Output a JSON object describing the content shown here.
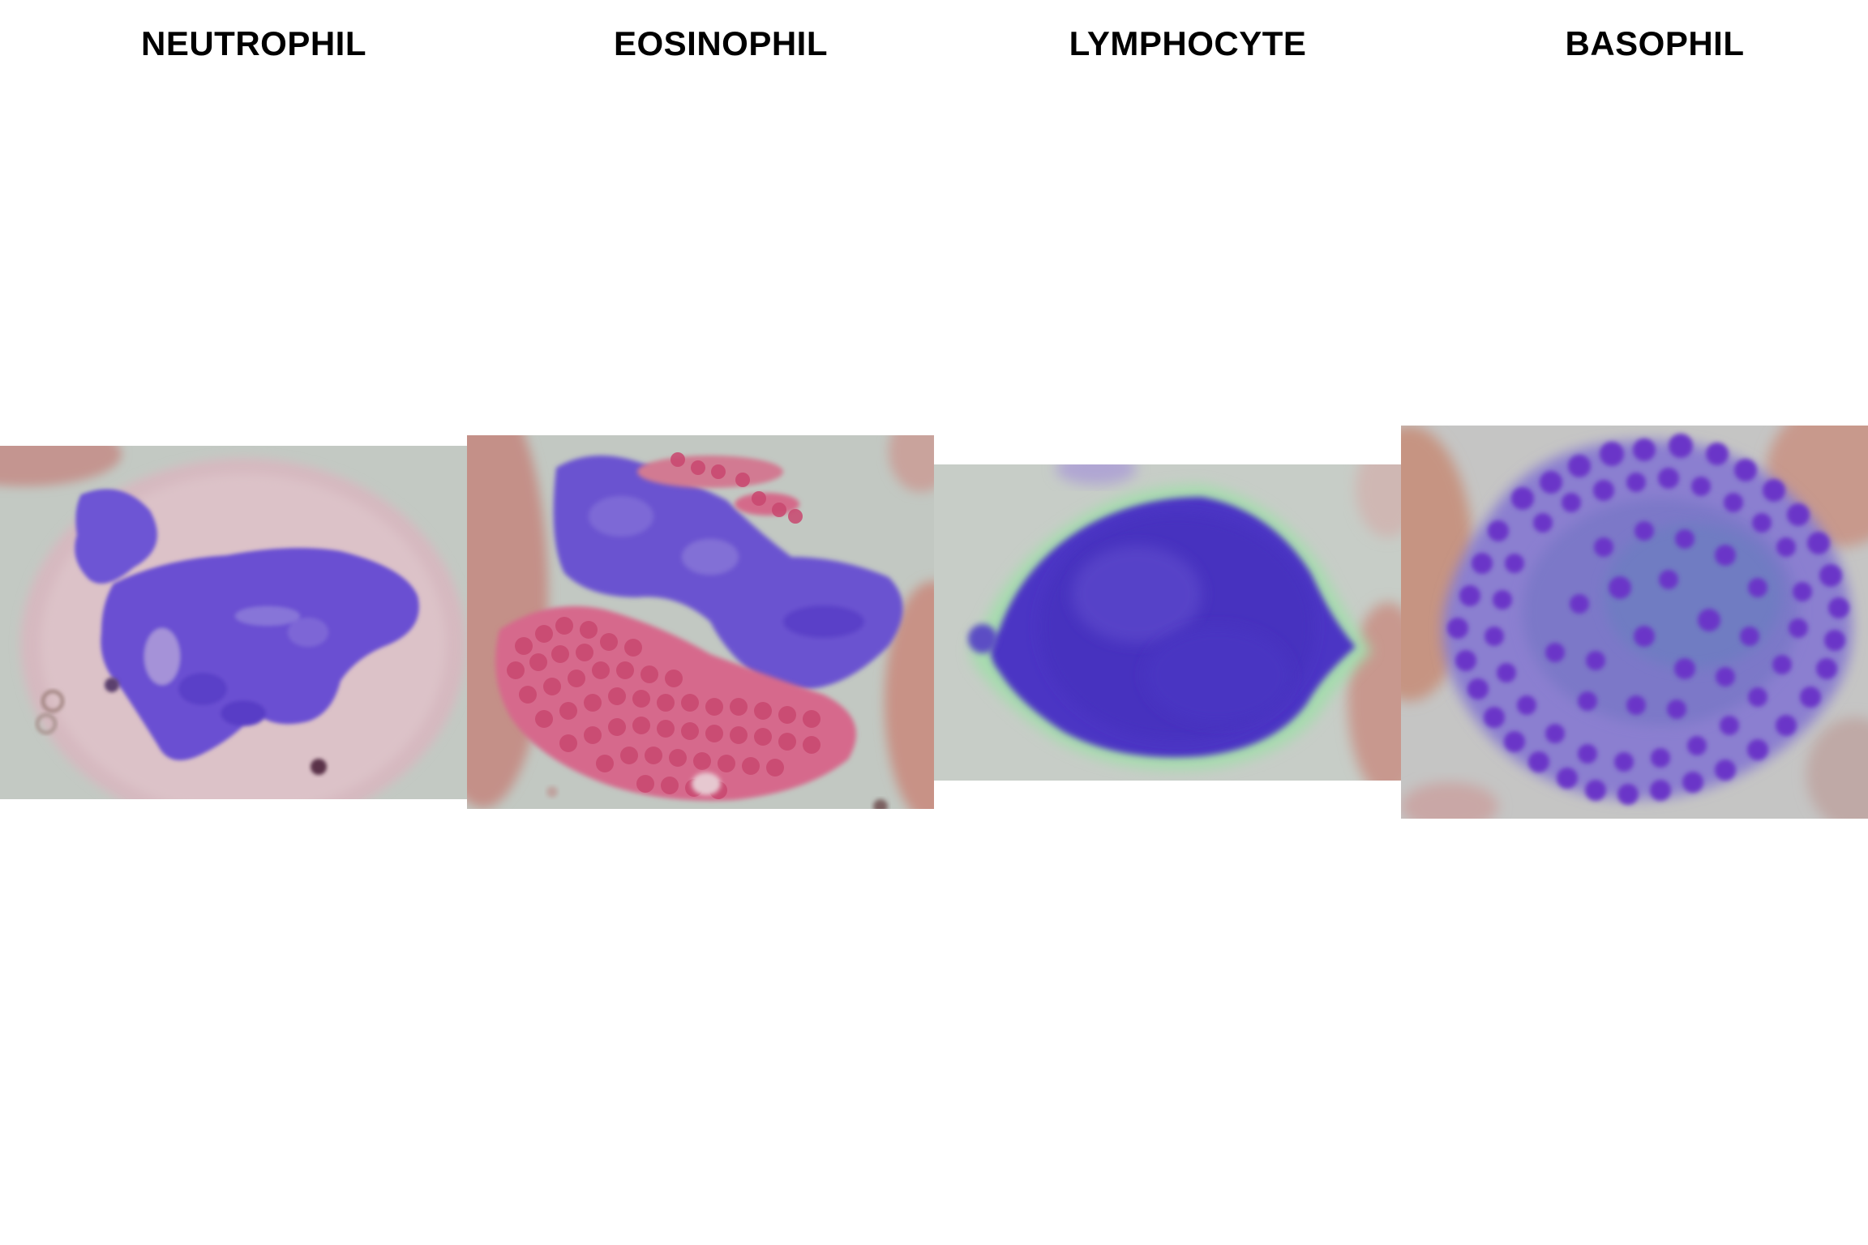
{
  "labels": {
    "neutrophil": "NEUTROPHIL",
    "eosinophil": "EOSINOPHIL",
    "lymphocyte": "LYMPHOCYTE",
    "basophil": "BASOPHIL"
  },
  "colors": {
    "background": "#ffffff",
    "plasma": "#c7cdc6",
    "red_cell": "#c48a82",
    "nucleus": "#6a4fd0",
    "nucleus_dark": "#4a32c0",
    "eosin_granule": "#d9587e",
    "baso_granule": "#6b38c9",
    "cytoplasm_pink": "#d7b7c1"
  }
}
